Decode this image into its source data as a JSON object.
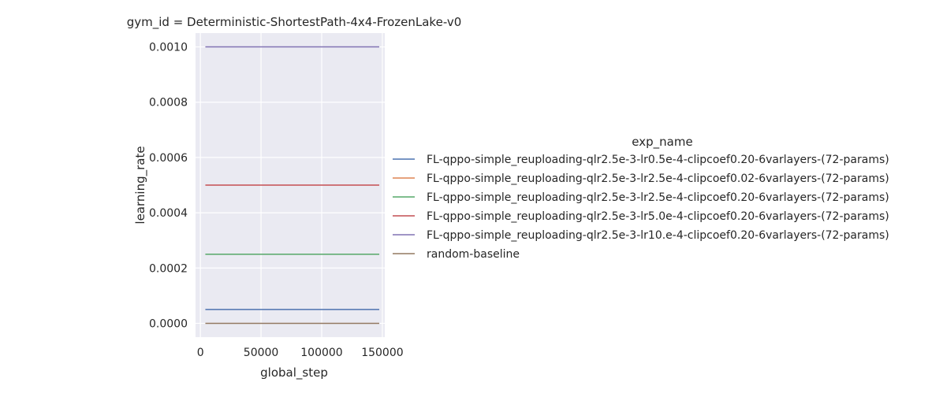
{
  "chart_data": {
    "type": "line",
    "title": "gym_id = Deterministic-ShortestPath-4x4-FrozenLake-v0",
    "xlabel": "global_step",
    "ylabel": "learning_rate",
    "xlim": [
      -4000,
      152000
    ],
    "ylim": [
      -5e-05,
      0.00105
    ],
    "xticks": [
      0,
      50000,
      100000,
      150000
    ],
    "xtick_labels": [
      "0",
      "50000",
      "100000",
      "150000"
    ],
    "yticks": [
      0.0,
      0.0002,
      0.0004,
      0.0006,
      0.0008,
      0.001
    ],
    "ytick_labels": [
      "0.0000",
      "0.0002",
      "0.0004",
      "0.0006",
      "0.0008",
      "0.0010"
    ],
    "grid": true,
    "legend_title": "exp_name",
    "legend_placement": "right",
    "x": [
      4096,
      147456
    ],
    "series": [
      {
        "name": "FL-qppo-simple_reuploading-qlr2.5e-3-lr0.5e-4-clipcoef0.20-6varlayers-(72-params)",
        "color": "#4c72b0",
        "values": [
          5e-05,
          5e-05
        ]
      },
      {
        "name": "FL-qppo-simple_reuploading-qlr2.5e-3-lr2.5e-4-clipcoef0.02-6varlayers-(72-params)",
        "color": "#dd8452",
        "values": [
          0.00025,
          0.00025
        ]
      },
      {
        "name": "FL-qppo-simple_reuploading-qlr2.5e-3-lr2.5e-4-clipcoef0.20-6varlayers-(72-params)",
        "color": "#55a868",
        "values": [
          0.00025,
          0.00025
        ]
      },
      {
        "name": "FL-qppo-simple_reuploading-qlr2.5e-3-lr5.0e-4-clipcoef0.20-6varlayers-(72-params)",
        "color": "#c44e52",
        "values": [
          0.0005,
          0.0005
        ]
      },
      {
        "name": "FL-qppo-simple_reuploading-qlr2.5e-3-lr10.e-4-clipcoef0.20-6varlayers-(72-params)",
        "color": "#8172b3",
        "values": [
          0.001,
          0.001
        ]
      },
      {
        "name": "random-baseline",
        "color": "#937860",
        "values": [
          0.0,
          0.0
        ]
      }
    ]
  }
}
